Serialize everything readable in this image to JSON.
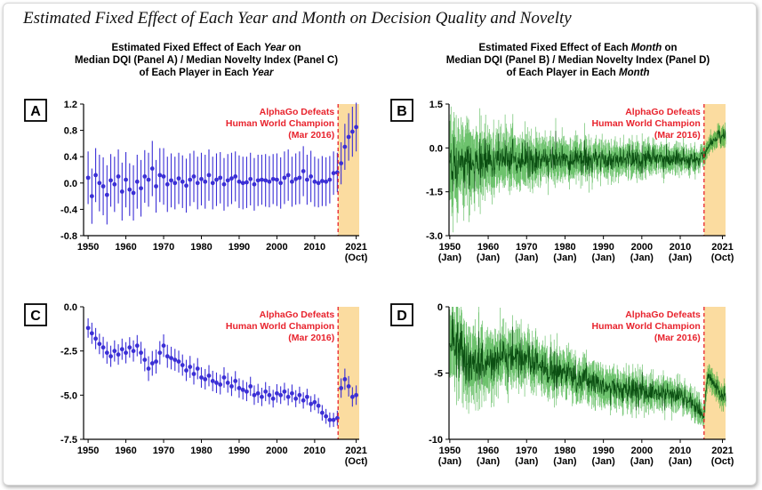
{
  "figure_title": "Estimated Fixed Effect of Each Year and Month on Decision Quality and Novelty",
  "left_title": {
    "pre": "Estimated Fixed Effect of Each ",
    "em": "Year",
    "post": " on",
    "line2": "Median DQI (Panel A) / Median Novelty Index (Panel C)",
    "line3_pre": "of Each Player in Each ",
    "line3_em": "Year"
  },
  "right_title": {
    "pre": "Estimated Fixed Effect of Each ",
    "em": "Month",
    "post": " on",
    "line2": "Median DQI (Panel B) / Median Novelty Index (Panel D)",
    "line3_pre": "of Each Player in Each ",
    "line3_em": "Month"
  },
  "colors": {
    "yearly": "#3b2fd6",
    "monthly": "#1e8a1e",
    "highlight": "#fbdca0",
    "event": "#e8232d"
  },
  "chart_data": [
    {
      "panel": "A",
      "type": "scatter",
      "granularity": "year",
      "annotation": [
        "AlphaGo Defeats",
        "Human World Champion",
        "(Mar 2016)"
      ],
      "event_x": 2016.2,
      "highlight_range": [
        2016.2,
        2021.8
      ],
      "xlim": [
        1948.8,
        2021.8
      ],
      "ylim": [
        -0.8,
        1.2
      ],
      "yticks": [
        -0.8,
        -0.4,
        0.0,
        0.4,
        0.8,
        1.2
      ],
      "yticklabels": [
        "-0.8",
        "-0.4",
        "0.0",
        "0.4",
        "0.8",
        "1.2"
      ],
      "xticks": [
        1950,
        1960,
        1970,
        1980,
        1990,
        2000,
        2010,
        2021
      ],
      "xticklabels": [
        [
          "1950"
        ],
        [
          "1960"
        ],
        [
          "1970"
        ],
        [
          "1980"
        ],
        [
          "1990"
        ],
        [
          "2000"
        ],
        [
          "2010"
        ],
        [
          "2021",
          "(Oct)"
        ]
      ],
      "x": [
        1950,
        1951,
        1952,
        1953,
        1954,
        1955,
        1956,
        1957,
        1958,
        1959,
        1960,
        1961,
        1962,
        1963,
        1964,
        1965,
        1966,
        1967,
        1968,
        1969,
        1970,
        1971,
        1972,
        1973,
        1974,
        1975,
        1976,
        1977,
        1978,
        1979,
        1980,
        1981,
        1982,
        1983,
        1984,
        1985,
        1986,
        1987,
        1988,
        1989,
        1990,
        1991,
        1992,
        1993,
        1994,
        1995,
        1996,
        1997,
        1998,
        1999,
        2000,
        2001,
        2002,
        2003,
        2004,
        2005,
        2006,
        2007,
        2008,
        2009,
        2010,
        2011,
        2012,
        2013,
        2014,
        2015,
        2016,
        2017,
        2018,
        2019,
        2020,
        2021
      ],
      "y": [
        0.08,
        -0.2,
        0.12,
        0.0,
        -0.05,
        -0.18,
        0.04,
        -0.02,
        0.1,
        -0.13,
        0.05,
        -0.1,
        -0.15,
        0.02,
        -0.08,
        0.1,
        0.05,
        0.22,
        -0.05,
        0.12,
        0.1,
        -0.02,
        0.04,
        0.0,
        0.07,
        0.02,
        -0.04,
        0.05,
        0.1,
        0.0,
        0.06,
        0.02,
        0.12,
        0.0,
        0.05,
        0.08,
        -0.02,
        0.04,
        0.07,
        0.1,
        0.02,
        0.0,
        0.01,
        0.06,
        -0.02,
        0.04,
        0.05,
        0.04,
        0.02,
        0.06,
        0.05,
        0.0,
        0.08,
        0.12,
        0.02,
        0.06,
        0.08,
        0.18,
        0.05,
        0.1,
        0.02,
        0.0,
        0.03,
        0.02,
        0.05,
        0.15,
        0.16,
        0.3,
        0.55,
        0.7,
        0.78,
        0.85
      ],
      "err": [
        0.4,
        0.42,
        0.41,
        0.43,
        0.44,
        0.45,
        0.4,
        0.42,
        0.41,
        0.44,
        0.42,
        0.4,
        0.42,
        0.41,
        0.43,
        0.4,
        0.41,
        0.42,
        0.4,
        0.41,
        0.43,
        0.42,
        0.41,
        0.4,
        0.39,
        0.4,
        0.41,
        0.4,
        0.39,
        0.4,
        0.4,
        0.41,
        0.39,
        0.4,
        0.4,
        0.39,
        0.4,
        0.4,
        0.39,
        0.38,
        0.4,
        0.4,
        0.39,
        0.4,
        0.4,
        0.39,
        0.38,
        0.4,
        0.39,
        0.38,
        0.4,
        0.39,
        0.4,
        0.39,
        0.38,
        0.39,
        0.4,
        0.38,
        0.38,
        0.39,
        0.38,
        0.37,
        0.38,
        0.37,
        0.36,
        0.33,
        0.3,
        0.32,
        0.35,
        0.36,
        0.38,
        0.37
      ]
    },
    {
      "panel": "B",
      "type": "line",
      "granularity": "month",
      "annotation": [
        "AlphaGo Defeats",
        "Human World Champion",
        "(Mar 2016)"
      ],
      "event_x": 2016.2,
      "highlight_range": [
        2016.2,
        2021.8
      ],
      "xlim": [
        1949.8,
        2021.8
      ],
      "ylim": [
        -3.0,
        1.5
      ],
      "yticks": [
        -3.0,
        -1.5,
        0.0,
        1.5
      ],
      "yticklabels": [
        "-3.0",
        "-1.5",
        "0.0",
        "1.5"
      ],
      "xticks": [
        1950,
        1960,
        1970,
        1980,
        1990,
        2000,
        2010,
        2021
      ],
      "xticklabels": [
        [
          "1950",
          "(Jan)"
        ],
        [
          "1960",
          "(Jan)"
        ],
        [
          "1970",
          "(Jan)"
        ],
        [
          "1980",
          "(Jan)"
        ],
        [
          "1990",
          "(Jan)"
        ],
        [
          "2000",
          "(Jan)"
        ],
        [
          "2010",
          "(Jan)"
        ],
        [
          "2021",
          "(Oct)"
        ]
      ],
      "trend_x": [
        1950,
        1955,
        1960,
        1970,
        1980,
        1990,
        2000,
        2010,
        2014,
        2016.2,
        2017,
        2018,
        2019,
        2020,
        2021.8
      ],
      "trend_y": [
        -0.55,
        -0.5,
        -0.42,
        -0.4,
        -0.42,
        -0.4,
        -0.38,
        -0.38,
        -0.4,
        -0.3,
        -0.05,
        0.15,
        0.3,
        0.4,
        0.45
      ],
      "noise_x": [
        1950,
        1960,
        1975,
        2000,
        2014,
        2016,
        2021.8
      ],
      "noise_y": [
        0.5,
        0.35,
        0.25,
        0.18,
        0.15,
        0.1,
        0.12
      ],
      "band_x": [
        1950,
        1960,
        1975,
        2000,
        2014,
        2016,
        2021.8
      ],
      "band_y": [
        1.5,
        1.0,
        0.7,
        0.5,
        0.4,
        0.3,
        0.35
      ]
    },
    {
      "panel": "C",
      "type": "scatter",
      "granularity": "year",
      "annotation": [
        "AlphaGo Defeats",
        "Human World Champion",
        "(Mar 2016)"
      ],
      "event_x": 2016.2,
      "highlight_range": [
        2016.2,
        2021.8
      ],
      "xlim": [
        1948.8,
        2021.8
      ],
      "ylim": [
        -7.5,
        0.0
      ],
      "yticks": [
        -7.5,
        -5.0,
        -2.5,
        0.0
      ],
      "yticklabels": [
        "-7.5",
        "-5.0",
        "-2.5",
        "0.0"
      ],
      "xticks": [
        1950,
        1960,
        1970,
        1980,
        1990,
        2000,
        2010,
        2021
      ],
      "xticklabels": [
        [
          "1950"
        ],
        [
          "1960"
        ],
        [
          "1970"
        ],
        [
          "1980"
        ],
        [
          "1990"
        ],
        [
          "2000"
        ],
        [
          "2010"
        ],
        [
          "2021",
          "(Oct)"
        ]
      ],
      "x": [
        1950,
        1951,
        1952,
        1953,
        1954,
        1955,
        1956,
        1957,
        1958,
        1959,
        1960,
        1961,
        1962,
        1963,
        1964,
        1965,
        1966,
        1967,
        1968,
        1969,
        1970,
        1971,
        1972,
        1973,
        1974,
        1975,
        1976,
        1977,
        1978,
        1979,
        1980,
        1981,
        1982,
        1983,
        1984,
        1985,
        1986,
        1987,
        1988,
        1989,
        1990,
        1991,
        1992,
        1993,
        1994,
        1995,
        1996,
        1997,
        1998,
        1999,
        2000,
        2001,
        2002,
        2003,
        2004,
        2005,
        2006,
        2007,
        2008,
        2009,
        2010,
        2011,
        2012,
        2013,
        2014,
        2015,
        2016,
        2017,
        2018,
        2019,
        2020,
        2021
      ],
      "y": [
        -1.2,
        -1.5,
        -1.8,
        -2.1,
        -2.3,
        -2.6,
        -2.8,
        -2.5,
        -2.7,
        -2.4,
        -2.6,
        -2.3,
        -2.5,
        -2.2,
        -2.6,
        -3.0,
        -3.5,
        -3.2,
        -3.1,
        -2.6,
        -2.2,
        -2.8,
        -2.9,
        -3.0,
        -3.1,
        -3.3,
        -3.6,
        -3.4,
        -3.8,
        -3.5,
        -4.0,
        -4.1,
        -3.9,
        -4.2,
        -4.3,
        -4.4,
        -4.0,
        -4.3,
        -4.5,
        -4.2,
        -4.6,
        -4.7,
        -4.8,
        -4.5,
        -5.0,
        -4.9,
        -5.1,
        -4.8,
        -5.0,
        -5.2,
        -4.9,
        -5.0,
        -4.8,
        -5.1,
        -4.9,
        -5.2,
        -5.0,
        -5.3,
        -5.1,
        -5.5,
        -5.4,
        -5.6,
        -6.0,
        -6.2,
        -6.4,
        -6.4,
        -6.3,
        -4.6,
        -4.1,
        -4.5,
        -5.1,
        -5.0
      ],
      "err": [
        0.55,
        0.6,
        0.6,
        0.58,
        0.6,
        0.62,
        0.6,
        0.6,
        0.58,
        0.6,
        0.6,
        0.58,
        0.6,
        0.6,
        0.62,
        0.65,
        0.7,
        0.7,
        0.68,
        0.66,
        0.64,
        0.65,
        0.64,
        0.62,
        0.62,
        0.6,
        0.6,
        0.62,
        0.6,
        0.6,
        0.58,
        0.58,
        0.6,
        0.58,
        0.58,
        0.56,
        0.58,
        0.56,
        0.55,
        0.56,
        0.55,
        0.55,
        0.54,
        0.54,
        0.55,
        0.54,
        0.52,
        0.54,
        0.52,
        0.5,
        0.52,
        0.5,
        0.5,
        0.48,
        0.5,
        0.48,
        0.48,
        0.46,
        0.46,
        0.45,
        0.45,
        0.44,
        0.44,
        0.42,
        0.42,
        0.4,
        0.42,
        0.55,
        0.6,
        0.58,
        0.55,
        0.55
      ]
    },
    {
      "panel": "D",
      "type": "line",
      "granularity": "month",
      "annotation": [
        "AlphaGo Defeats",
        "Human World Champion",
        "(Mar 2016)"
      ],
      "event_x": 2016.2,
      "highlight_range": [
        2016.2,
        2021.8
      ],
      "xlim": [
        1949.8,
        2021.8
      ],
      "ylim": [
        -10,
        0
      ],
      "yticks": [
        -10,
        -5,
        0
      ],
      "yticklabels": [
        "-10",
        "-5",
        "0"
      ],
      "xticks": [
        1950,
        1960,
        1970,
        1980,
        1990,
        2000,
        2010,
        2021
      ],
      "xticklabels": [
        [
          "1950",
          "(Jan)"
        ],
        [
          "1960",
          "(Jan)"
        ],
        [
          "1970",
          "(Jan)"
        ],
        [
          "1980",
          "(Jan)"
        ],
        [
          "1990",
          "(Jan)"
        ],
        [
          "2000",
          "(Jan)"
        ],
        [
          "2010",
          "(Jan)"
        ],
        [
          "2021",
          "(Oct)"
        ]
      ],
      "trend_x": [
        1950,
        1952,
        1955,
        1958,
        1962,
        1966,
        1968,
        1972,
        1976,
        1980,
        1985,
        1990,
        1995,
        2000,
        2005,
        2010,
        2013,
        2015,
        2016.2,
        2016.8,
        2017.5,
        2018.5,
        2019.5,
        2020.5,
        2021.8
      ],
      "trend_y": [
        -1.8,
        -2.8,
        -4.0,
        -4.6,
        -4.0,
        -3.5,
        -3.8,
        -4.2,
        -4.8,
        -5.0,
        -5.5,
        -6.0,
        -6.3,
        -6.3,
        -6.5,
        -6.8,
        -7.3,
        -7.8,
        -8.3,
        -6.0,
        -5.0,
        -5.6,
        -6.3,
        -6.6,
        -6.8
      ],
      "noise_x": [
        1950,
        1960,
        1975,
        2000,
        2014,
        2016,
        2021.8
      ],
      "noise_y": [
        1.2,
        0.9,
        0.6,
        0.45,
        0.35,
        0.25,
        0.3
      ],
      "band_x": [
        1950,
        1960,
        1975,
        2000,
        2014,
        2016,
        2021.8
      ],
      "band_y": [
        3.0,
        2.2,
        1.6,
        1.2,
        1.0,
        0.8,
        0.9
      ]
    }
  ]
}
